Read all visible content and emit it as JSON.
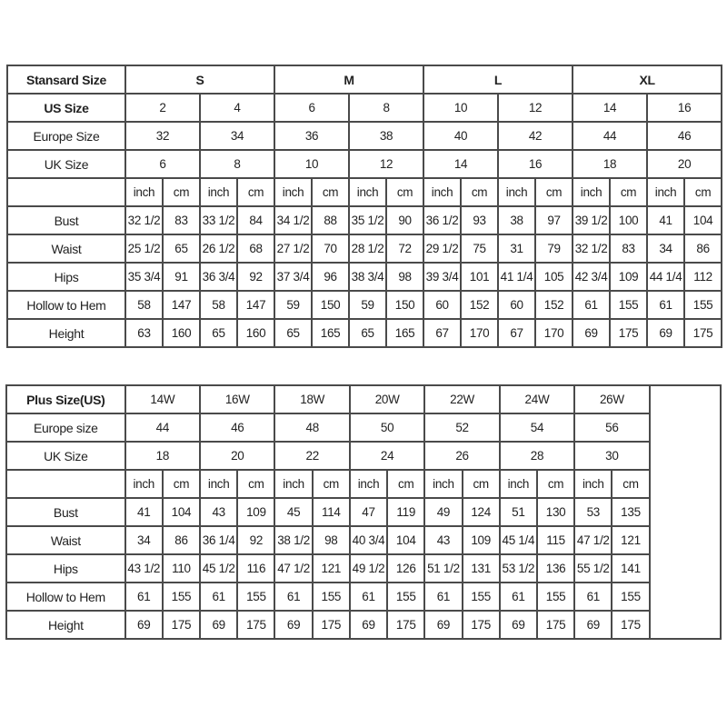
{
  "standard": {
    "header_label": "Stansard Size",
    "groups": [
      "S",
      "M",
      "L",
      "XL"
    ],
    "size_rows": [
      {
        "label": "US Size",
        "values": [
          "2",
          "4",
          "6",
          "8",
          "10",
          "12",
          "14",
          "16"
        ]
      },
      {
        "label": "Europe Size",
        "values": [
          "32",
          "34",
          "36",
          "38",
          "40",
          "42",
          "44",
          "46"
        ]
      },
      {
        "label": "UK Size",
        "values": [
          "6",
          "8",
          "10",
          "12",
          "14",
          "16",
          "18",
          "20"
        ]
      }
    ],
    "units": [
      "inch",
      "cm"
    ],
    "measure_rows": [
      {
        "label": "Bust",
        "values": [
          "32 1/2",
          "83",
          "33 1/2",
          "84",
          "34 1/2",
          "88",
          "35 1/2",
          "90",
          "36 1/2",
          "93",
          "38",
          "97",
          "39 1/2",
          "100",
          "41",
          "104"
        ]
      },
      {
        "label": "Waist",
        "values": [
          "25 1/2",
          "65",
          "26 1/2",
          "68",
          "27 1/2",
          "70",
          "28 1/2",
          "72",
          "29 1/2",
          "75",
          "31",
          "79",
          "32 1/2",
          "83",
          "34",
          "86"
        ]
      },
      {
        "label": "Hips",
        "values": [
          "35 3/4",
          "91",
          "36 3/4",
          "92",
          "37 3/4",
          "96",
          "38 3/4",
          "98",
          "39 3/4",
          "101",
          "41 1/4",
          "105",
          "42 3/4",
          "109",
          "44 1/4",
          "112"
        ]
      },
      {
        "label": "Hollow to Hem",
        "values": [
          "58",
          "147",
          "58",
          "147",
          "59",
          "150",
          "59",
          "150",
          "60",
          "152",
          "60",
          "152",
          "61",
          "155",
          "61",
          "155"
        ]
      },
      {
        "label": "Height",
        "values": [
          "63",
          "160",
          "65",
          "160",
          "65",
          "165",
          "65",
          "165",
          "67",
          "170",
          "67",
          "170",
          "69",
          "175",
          "69",
          "175"
        ]
      }
    ]
  },
  "plus": {
    "header_label": "Plus Size(US)",
    "sizes": [
      "14W",
      "16W",
      "18W",
      "20W",
      "22W",
      "24W",
      "26W"
    ],
    "size_rows": [
      {
        "label": "Europe size",
        "values": [
          "44",
          "46",
          "48",
          "50",
          "52",
          "54",
          "56"
        ]
      },
      {
        "label": "UK Size",
        "values": [
          "18",
          "20",
          "22",
          "24",
          "26",
          "28",
          "30"
        ]
      }
    ],
    "units": [
      "inch",
      "cm"
    ],
    "measure_rows": [
      {
        "label": "Bust",
        "values": [
          "41",
          "104",
          "43",
          "109",
          "45",
          "114",
          "47",
          "119",
          "49",
          "124",
          "51",
          "130",
          "53",
          "135"
        ]
      },
      {
        "label": "Waist",
        "values": [
          "34",
          "86",
          "36 1/4",
          "92",
          "38 1/2",
          "98",
          "40 3/4",
          "104",
          "43",
          "109",
          "45 1/4",
          "115",
          "47 1/2",
          "121"
        ]
      },
      {
        "label": "Hips",
        "values": [
          "43 1/2",
          "110",
          "45 1/2",
          "116",
          "47 1/2",
          "121",
          "49 1/2",
          "126",
          "51 1/2",
          "131",
          "53 1/2",
          "136",
          "55 1/2",
          "141"
        ]
      },
      {
        "label": "Hollow to Hem",
        "values": [
          "61",
          "155",
          "61",
          "155",
          "61",
          "155",
          "61",
          "155",
          "61",
          "155",
          "61",
          "155",
          "61",
          "155"
        ]
      },
      {
        "label": "Height",
        "values": [
          "69",
          "175",
          "69",
          "175",
          "69",
          "175",
          "69",
          "175",
          "69",
          "175",
          "69",
          "175",
          "69",
          "175"
        ]
      }
    ]
  }
}
